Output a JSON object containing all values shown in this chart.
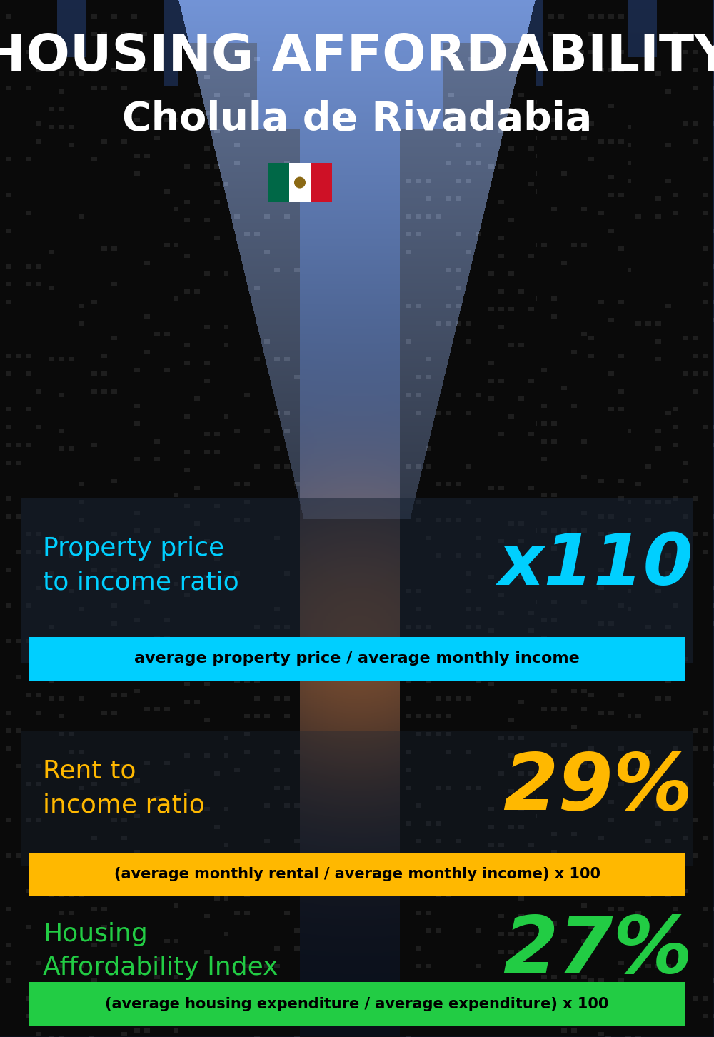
{
  "title_line1": "HOUSING AFFORDABILITY",
  "title_line2": "Cholula de Rivadabia",
  "section1_label": "Property price\nto income ratio",
  "section1_value": "x110",
  "section1_subtitle": "average property price / average monthly income",
  "section1_label_color": "#00CFFF",
  "section1_value_color": "#00CFFF",
  "section1_subtitle_bg": "#00CFFF",
  "section1_subtitle_color": "#000000",
  "section2_label": "Rent to\nincome ratio",
  "section2_value": "29%",
  "section2_subtitle": "(average monthly rental / average monthly income) x 100",
  "section2_label_color": "#FFB800",
  "section2_value_color": "#FFB800",
  "section2_subtitle_bg": "#FFB800",
  "section2_subtitle_color": "#000000",
  "section3_label": "Housing\nAffordability Index",
  "section3_value": "27%",
  "section3_subtitle": "(average housing expenditure / average expenditure) x 100",
  "section3_label_color": "#22CC44",
  "section3_value_color": "#22CC44",
  "section3_subtitle_bg": "#22CC44",
  "section3_subtitle_color": "#000000",
  "title_color": "#FFFFFF",
  "fig_width": 10.0,
  "fig_height": 14.52
}
